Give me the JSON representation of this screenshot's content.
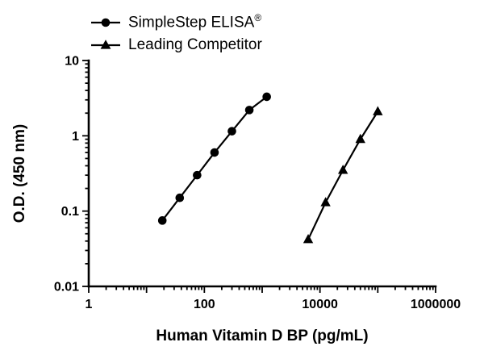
{
  "chart_data": {
    "type": "line",
    "title": "",
    "xlabel": "Human Vitamin D BP (pg/mL)",
    "ylabel": "O.D. (450 nm)",
    "x_scale": "log",
    "y_scale": "log",
    "xlim": [
      1,
      1000000
    ],
    "ylim": [
      0.01,
      10
    ],
    "grid": false,
    "legend_position": "top-left",
    "x_ticks": [
      {
        "value": 1,
        "label": "1"
      },
      {
        "value": 100,
        "label": "100"
      },
      {
        "value": 10000,
        "label": "10000"
      },
      {
        "value": 1000000,
        "label": "1000000"
      }
    ],
    "y_ticks": [
      {
        "value": 0.01,
        "label": "0.01"
      },
      {
        "value": 0.1,
        "label": "0.1"
      },
      {
        "value": 1,
        "label": "1"
      },
      {
        "value": 10,
        "label": "10"
      }
    ],
    "series": [
      {
        "id": "simplestep-elisa",
        "name": "SimpleStep ELISA",
        "reg_mark": "®",
        "marker": "circle",
        "color": "#000000",
        "x": [
          18.75,
          37.5,
          75,
          150,
          300,
          600,
          1200
        ],
        "y": [
          0.075,
          0.15,
          0.3,
          0.6,
          1.15,
          2.2,
          3.3
        ]
      },
      {
        "id": "leading-competitor",
        "name": "Leading Competitor",
        "reg_mark": "",
        "marker": "triangle",
        "color": "#000000",
        "x": [
          6250,
          12500,
          25000,
          50000,
          100000
        ],
        "y": [
          0.042,
          0.13,
          0.35,
          0.9,
          2.1
        ]
      }
    ]
  }
}
